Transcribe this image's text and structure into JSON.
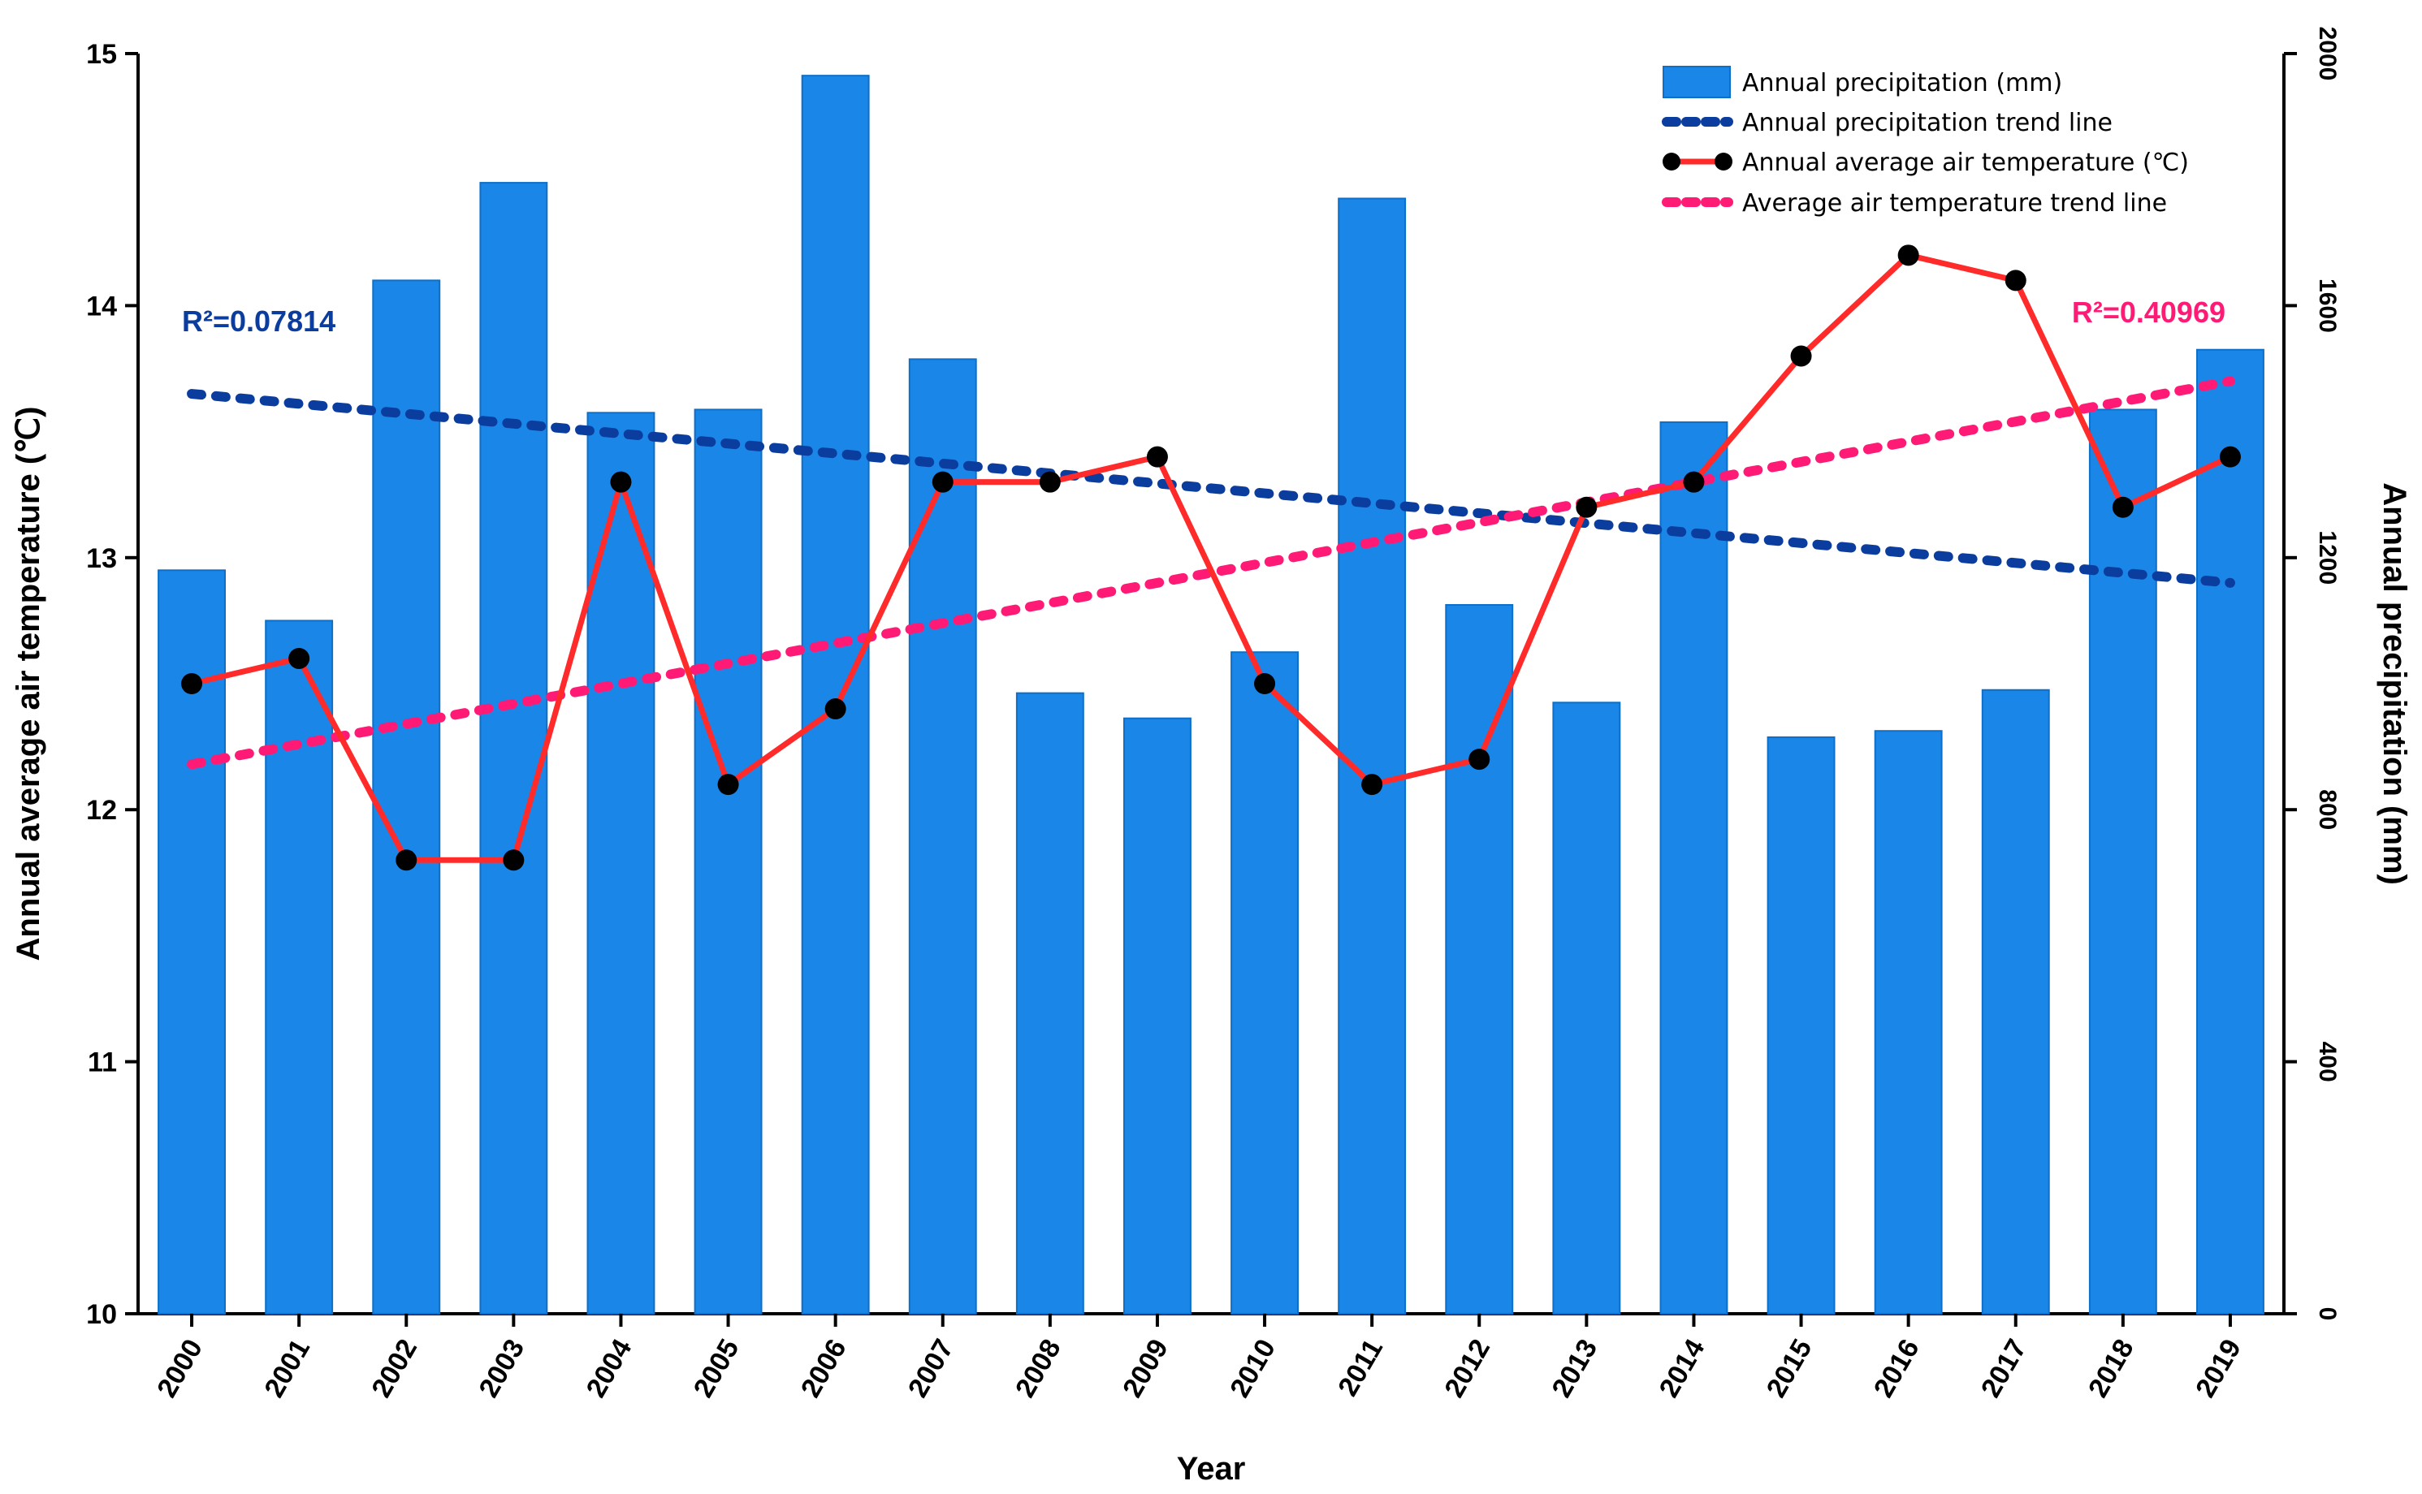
{
  "chart_data": {
    "type": "bar",
    "categories": [
      "2000",
      "2001",
      "2002",
      "2003",
      "2004",
      "2005",
      "2006",
      "2007",
      "2008",
      "2009",
      "2010",
      "2011",
      "2012",
      "2013",
      "2014",
      "2015",
      "2016",
      "2017",
      "2018",
      "2019"
    ],
    "series": [
      {
        "name": "Annual precipitation (mm)",
        "type": "bar",
        "axis": "right",
        "color": "#1a87e8",
        "values": [
          1180,
          1100,
          1640,
          1795,
          1430,
          1435,
          1965,
          1515,
          985,
          945,
          1050,
          1770,
          1125,
          970,
          1415,
          915,
          925,
          990,
          1435,
          1530
        ]
      },
      {
        "name": "Annual average air temperature (℃)",
        "type": "line",
        "axis": "left",
        "color": "#ff2a2a",
        "marker_color": "#000000",
        "values": [
          12.5,
          12.6,
          11.8,
          11.8,
          13.3,
          12.1,
          12.4,
          13.3,
          13.3,
          13.4,
          12.5,
          12.1,
          12.2,
          13.2,
          13.3,
          13.8,
          14.2,
          14.1,
          13.2,
          13.4
        ]
      },
      {
        "name": "Annual precipitation trend line",
        "type": "trend",
        "axis": "right",
        "color": "#0b3d9e",
        "start": 1460,
        "end": 1160
      },
      {
        "name": "Average air temperature trend line",
        "type": "trend",
        "axis": "left",
        "color": "#ff1a75",
        "start": 12.18,
        "end": 13.7
      }
    ],
    "xlabel": "Year",
    "ylabel_left": "Annual average air temperature (℃)",
    "ylabel_right": "Annual precipitation (mm)",
    "ylim_left": [
      10,
      15
    ],
    "yticks_left": [
      "10",
      "11",
      "12",
      "13",
      "14",
      "15"
    ],
    "ylim_right": [
      0,
      2000
    ],
    "yticks_right": [
      "0",
      "400",
      "800",
      "1200",
      "1600",
      "2000"
    ],
    "annotations": [
      {
        "text": "R²=0.07814",
        "color": "#0b3d9e"
      },
      {
        "text": "R²=0.40969",
        "color": "#ff1a75"
      }
    ],
    "legend_position": "top-right",
    "grid": false
  }
}
